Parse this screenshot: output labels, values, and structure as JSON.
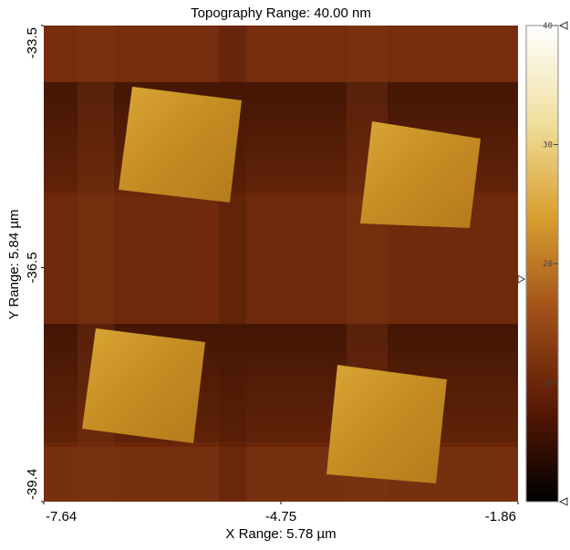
{
  "chart_data": {
    "type": "image",
    "title": "Topography Range:  40.00 nm",
    "x_label": "X Range:  5.78 µm",
    "y_label": "Y Range:  5.84 µm",
    "xlim": [
      -7.64,
      -1.86
    ],
    "xticks": [
      -7.64,
      -4.75,
      -1.86
    ],
    "ylim": [
      -39.4,
      -33.5
    ],
    "yticks": [
      -39.4,
      -36.5,
      -33.5
    ],
    "colorbar": {
      "lim": [
        0,
        40
      ],
      "ticks": [
        10,
        20,
        30,
        40
      ],
      "colors": [
        "#000000",
        "#5a1a05",
        "#a0501a",
        "#d9a030",
        "#f0e0a0",
        "#ffffff"
      ]
    }
  }
}
